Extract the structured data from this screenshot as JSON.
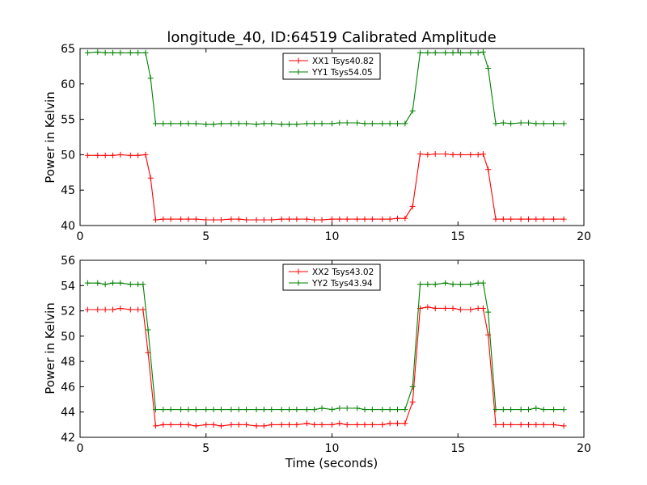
{
  "chart_data": [
    {
      "type": "line",
      "title": "longitude_40, ID:64519 Calibrated Amplitude",
      "xlabel": "",
      "ylabel": "Power in Kelvin",
      "xlim": [
        0,
        20
      ],
      "ylim": [
        40,
        65
      ],
      "xticks": [
        "0",
        "5",
        "10",
        "15",
        "20"
      ],
      "yticks": [
        "40",
        "45",
        "50",
        "55",
        "60",
        "65"
      ],
      "grid": false,
      "legend_position": "top-center",
      "x": [
        0.3,
        0.7,
        1.0,
        1.3,
        1.6,
        2.0,
        2.3,
        2.6,
        2.8,
        3.0,
        3.3,
        3.6,
        4.0,
        4.3,
        4.6,
        5.0,
        5.3,
        5.6,
        6.0,
        6.3,
        6.6,
        7.0,
        7.3,
        7.6,
        8.0,
        8.3,
        8.6,
        9.0,
        9.3,
        9.6,
        10.0,
        10.3,
        10.6,
        11.0,
        11.3,
        11.6,
        12.0,
        12.3,
        12.6,
        12.9,
        13.2,
        13.5,
        13.8,
        14.1,
        14.5,
        14.8,
        15.1,
        15.5,
        15.8,
        16.0,
        16.2,
        16.5,
        16.8,
        17.1,
        17.5,
        17.8,
        18.1,
        18.4,
        18.8,
        19.2
      ],
      "series": [
        {
          "name": "XX1 Tsys40.82",
          "color": "#ff0000",
          "values": [
            49.9,
            49.9,
            49.9,
            49.9,
            50.0,
            49.9,
            49.9,
            50.0,
            46.7,
            40.8,
            40.9,
            40.9,
            40.9,
            40.9,
            40.9,
            40.8,
            40.8,
            40.8,
            40.9,
            40.9,
            40.8,
            40.8,
            40.8,
            40.8,
            40.9,
            40.9,
            40.9,
            40.9,
            40.8,
            40.8,
            40.9,
            40.9,
            40.9,
            40.9,
            40.9,
            40.9,
            40.9,
            40.9,
            41.0,
            41.0,
            42.7,
            50.1,
            50.0,
            50.1,
            50.1,
            50.0,
            50.0,
            50.0,
            50.0,
            50.1,
            47.9,
            40.9,
            40.9,
            40.9,
            40.9,
            40.9,
            40.9,
            40.9,
            40.9,
            40.9
          ]
        },
        {
          "name": "YY1 Tsys54.05",
          "color": "#008000",
          "values": [
            64.4,
            64.5,
            64.4,
            64.4,
            64.4,
            64.4,
            64.4,
            64.4,
            60.8,
            54.4,
            54.4,
            54.4,
            54.4,
            54.4,
            54.4,
            54.3,
            54.3,
            54.4,
            54.4,
            54.4,
            54.4,
            54.3,
            54.4,
            54.4,
            54.3,
            54.3,
            54.3,
            54.4,
            54.4,
            54.4,
            54.4,
            54.5,
            54.5,
            54.5,
            54.4,
            54.4,
            54.4,
            54.4,
            54.4,
            54.4,
            56.2,
            64.4,
            64.4,
            64.4,
            64.4,
            64.4,
            64.4,
            64.4,
            64.4,
            64.5,
            62.2,
            54.4,
            54.5,
            54.4,
            54.5,
            54.5,
            54.4,
            54.4,
            54.4,
            54.4
          ]
        }
      ]
    },
    {
      "type": "line",
      "title": "",
      "xlabel": "Time (seconds)",
      "ylabel": "Power in Kelvin",
      "xlim": [
        0,
        20
      ],
      "ylim": [
        42,
        56
      ],
      "xticks": [
        "0",
        "5",
        "10",
        "15",
        "20"
      ],
      "yticks": [
        "42",
        "44",
        "46",
        "48",
        "50",
        "52",
        "54",
        "56"
      ],
      "grid": false,
      "legend_position": "top-center",
      "x": [
        0.3,
        0.7,
        1.0,
        1.3,
        1.6,
        2.0,
        2.3,
        2.5,
        2.7,
        3.0,
        3.3,
        3.6,
        4.0,
        4.3,
        4.6,
        5.0,
        5.3,
        5.6,
        6.0,
        6.3,
        6.6,
        7.0,
        7.3,
        7.6,
        8.0,
        8.3,
        8.6,
        9.0,
        9.3,
        9.6,
        10.0,
        10.3,
        10.6,
        11.0,
        11.3,
        11.6,
        12.0,
        12.3,
        12.6,
        12.9,
        13.2,
        13.5,
        13.8,
        14.1,
        14.5,
        14.8,
        15.1,
        15.5,
        15.8,
        16.0,
        16.2,
        16.5,
        16.8,
        17.1,
        17.5,
        17.8,
        18.1,
        18.4,
        18.8,
        19.2
      ],
      "series": [
        {
          "name": "XX2 Tsys43.02",
          "color": "#ff0000",
          "values": [
            52.1,
            52.1,
            52.1,
            52.1,
            52.2,
            52.1,
            52.1,
            52.1,
            48.7,
            42.9,
            43.0,
            43.0,
            43.0,
            43.0,
            42.9,
            43.0,
            43.0,
            42.9,
            43.0,
            43.0,
            43.0,
            42.9,
            42.9,
            43.0,
            43.0,
            43.0,
            43.0,
            43.1,
            43.0,
            43.0,
            43.0,
            43.1,
            43.0,
            43.0,
            43.0,
            43.0,
            43.0,
            43.1,
            43.1,
            43.1,
            44.8,
            52.2,
            52.3,
            52.2,
            52.2,
            52.2,
            52.1,
            52.1,
            52.2,
            52.2,
            50.1,
            43.0,
            43.0,
            43.0,
            43.0,
            43.0,
            43.0,
            43.0,
            43.0,
            42.9
          ]
        },
        {
          "name": "YY2 Tsys43.94",
          "color": "#008000",
          "values": [
            54.2,
            54.2,
            54.1,
            54.2,
            54.2,
            54.1,
            54.1,
            54.1,
            50.5,
            44.2,
            44.2,
            44.2,
            44.2,
            44.2,
            44.2,
            44.2,
            44.2,
            44.2,
            44.2,
            44.2,
            44.2,
            44.2,
            44.2,
            44.2,
            44.2,
            44.2,
            44.2,
            44.2,
            44.2,
            44.3,
            44.2,
            44.3,
            44.3,
            44.3,
            44.2,
            44.2,
            44.2,
            44.2,
            44.2,
            44.2,
            46.0,
            54.1,
            54.1,
            54.1,
            54.2,
            54.1,
            54.1,
            54.1,
            54.2,
            54.2,
            51.9,
            44.2,
            44.2,
            44.2,
            44.2,
            44.2,
            44.3,
            44.2,
            44.2,
            44.2
          ]
        }
      ]
    }
  ]
}
